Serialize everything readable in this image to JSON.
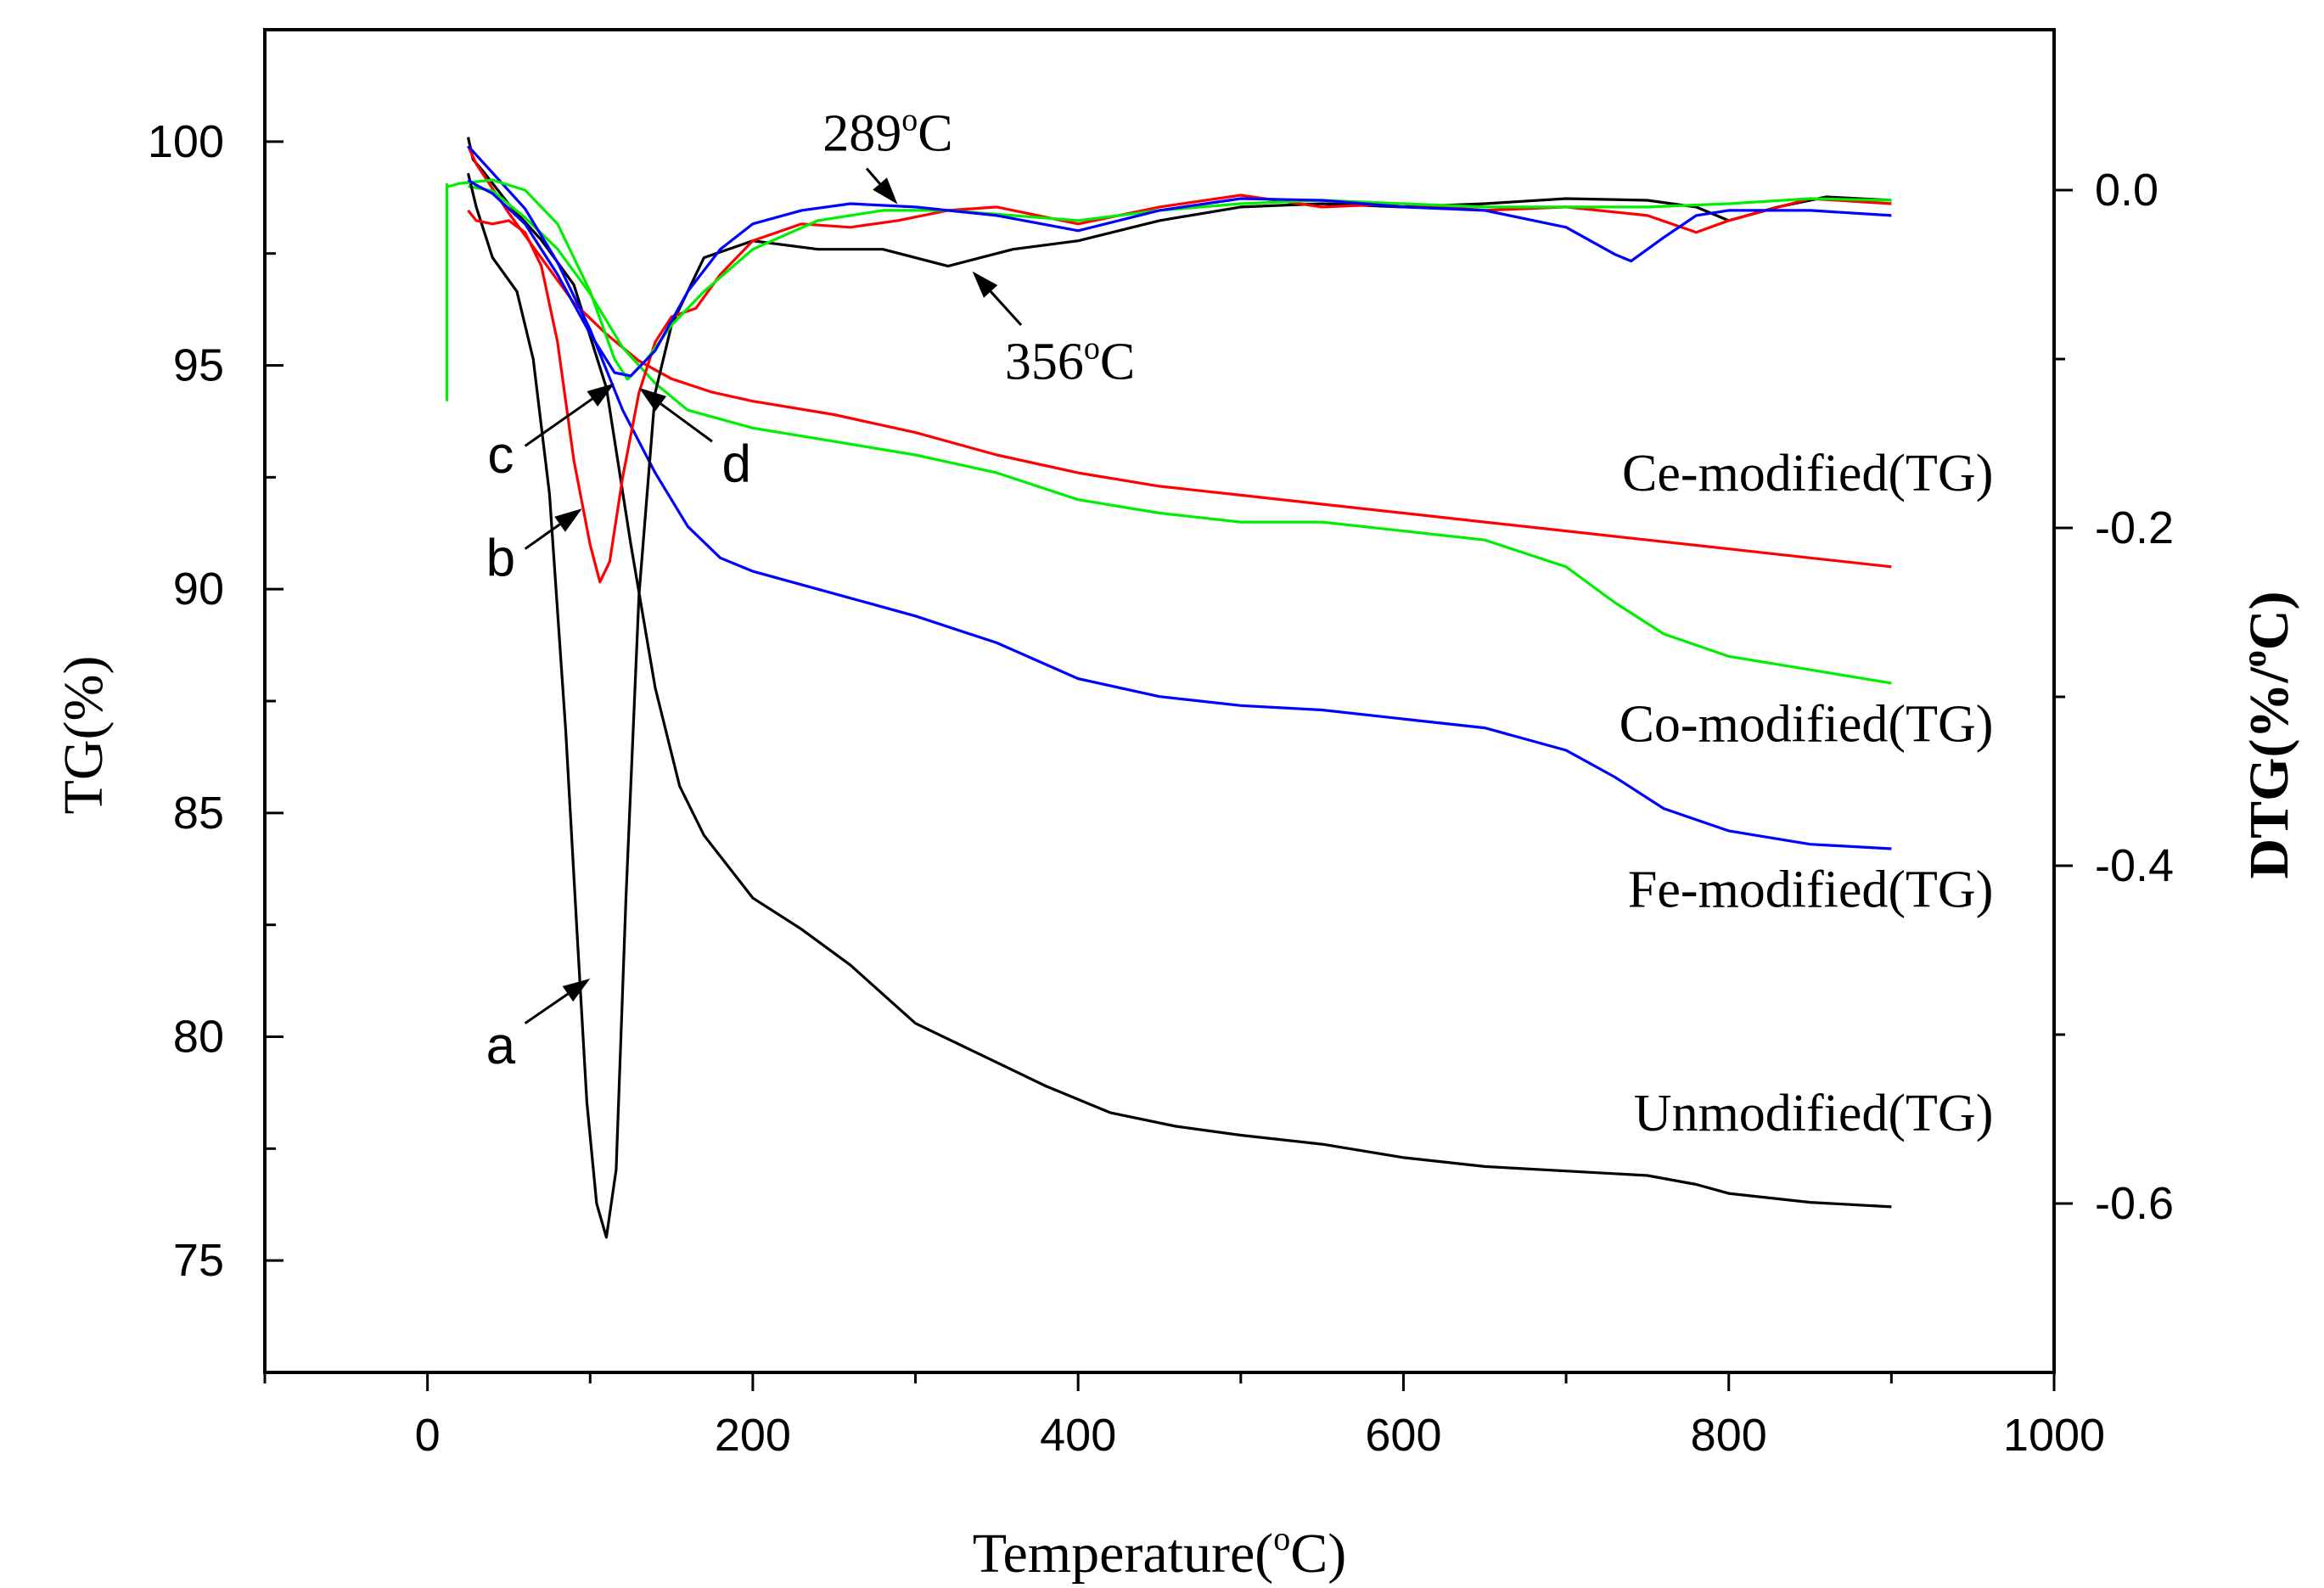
{
  "chart_data": {
    "type": "line",
    "title": "",
    "xlabel": {
      "pre": "Temperature(",
      "sup": "o",
      "post": "C)"
    },
    "ylabel_left": "TG(%)",
    "ylabel_right": {
      "pre": "DTG(%/",
      "sup": "o",
      "post": "C)"
    },
    "xlim": [
      -100,
      1000
    ],
    "ylim_left": [
      72.5,
      102.5
    ],
    "ylim_right": [
      -0.7,
      0.095
    ],
    "x_ticks": [
      0,
      200,
      400,
      600,
      800,
      1000
    ],
    "x_ticks_minor": [
      -100,
      100,
      300,
      500,
      700,
      900
    ],
    "y_left_ticks": [
      75,
      80,
      85,
      90,
      95,
      100
    ],
    "y_left_minor": [
      77.5,
      82.5,
      87.5,
      92.5,
      97.5
    ],
    "y_right_ticks": [
      0.0,
      -0.2,
      -0.4,
      -0.6
    ],
    "y_right_ticks_text": [
      "0.0",
      "-0.2",
      "-0.4",
      "-0.6"
    ],
    "y_right_minor": [
      -0.1,
      -0.3,
      -0.5
    ],
    "colors": {
      "black": "#000000",
      "red": "#ff0000",
      "green": "#00ee00",
      "blue": "#0000ff"
    },
    "series": [
      {
        "name": "Unmodified(TG)",
        "kind": "TG",
        "color": "#000000",
        "axis": "left",
        "points": [
          [
            25,
            100.1
          ],
          [
            28,
            99.6
          ],
          [
            35,
            99.3
          ],
          [
            50,
            98.6
          ],
          [
            70,
            97.8
          ],
          [
            90,
            96.8
          ],
          [
            110,
            94.5
          ],
          [
            125,
            91
          ],
          [
            140,
            87.8
          ],
          [
            155,
            85.6
          ],
          [
            170,
            84.5
          ],
          [
            200,
            83.1
          ],
          [
            230,
            82.4
          ],
          [
            260,
            81.6
          ],
          [
            300,
            80.3
          ],
          [
            340,
            79.6
          ],
          [
            380,
            78.9
          ],
          [
            420,
            78.3
          ],
          [
            460,
            78
          ],
          [
            500,
            77.8
          ],
          [
            550,
            77.6
          ],
          [
            600,
            77.3
          ],
          [
            650,
            77.1
          ],
          [
            700,
            77
          ],
          [
            750,
            76.9
          ],
          [
            780,
            76.7
          ],
          [
            800,
            76.5
          ],
          [
            850,
            76.3
          ],
          [
            900,
            76.2
          ]
        ]
      },
      {
        "name": "Ce-modified(TG)",
        "kind": "TG",
        "color": "#ff0000",
        "axis": "left",
        "points": [
          [
            25,
            99.9
          ],
          [
            30,
            99.5
          ],
          [
            50,
            98.4
          ],
          [
            70,
            97.4
          ],
          [
            90,
            96.4
          ],
          [
            110,
            95.7
          ],
          [
            130,
            95.1
          ],
          [
            150,
            94.7
          ],
          [
            175,
            94.4
          ],
          [
            200,
            94.2
          ],
          [
            250,
            93.9
          ],
          [
            300,
            93.5
          ],
          [
            350,
            93
          ],
          [
            400,
            92.6
          ],
          [
            450,
            92.3
          ],
          [
            500,
            92.1
          ],
          [
            550,
            91.9
          ],
          [
            600,
            91.7
          ],
          [
            650,
            91.5
          ],
          [
            700,
            91.3
          ],
          [
            750,
            91.1
          ],
          [
            800,
            90.9
          ],
          [
            850,
            90.7
          ],
          [
            900,
            90.5
          ]
        ]
      },
      {
        "name": "Co-modified(TG)",
        "kind": "TG",
        "color": "#00ee00",
        "axis": "left",
        "points": [
          [
            25,
            99
          ],
          [
            40,
            98.9
          ],
          [
            60,
            98.3
          ],
          [
            80,
            97.6
          ],
          [
            100,
            96.6
          ],
          [
            120,
            95.4
          ],
          [
            140,
            94.6
          ],
          [
            160,
            94
          ],
          [
            200,
            93.6
          ],
          [
            250,
            93.3
          ],
          [
            300,
            93
          ],
          [
            350,
            92.6
          ],
          [
            400,
            92
          ],
          [
            450,
            91.7
          ],
          [
            500,
            91.5
          ],
          [
            550,
            91.5
          ],
          [
            600,
            91.3
          ],
          [
            650,
            91.1
          ],
          [
            700,
            90.5
          ],
          [
            730,
            89.7
          ],
          [
            760,
            89
          ],
          [
            800,
            88.5
          ],
          [
            850,
            88.2
          ],
          [
            900,
            87.9
          ]
        ]
      },
      {
        "name": "Fe-modified(TG)",
        "kind": "TG",
        "color": "#0000ff",
        "axis": "left",
        "points": [
          [
            25,
            99.9
          ],
          [
            40,
            99.3
          ],
          [
            60,
            98.5
          ],
          [
            80,
            97.3
          ],
          [
            100,
            95.8
          ],
          [
            120,
            94
          ],
          [
            140,
            92.6
          ],
          [
            160,
            91.4
          ],
          [
            180,
            90.7
          ],
          [
            200,
            90.4
          ],
          [
            250,
            89.9
          ],
          [
            300,
            89.4
          ],
          [
            350,
            88.8
          ],
          [
            400,
            88
          ],
          [
            450,
            87.6
          ],
          [
            500,
            87.4
          ],
          [
            550,
            87.3
          ],
          [
            600,
            87.1
          ],
          [
            650,
            86.9
          ],
          [
            700,
            86.4
          ],
          [
            730,
            85.8
          ],
          [
            760,
            85.1
          ],
          [
            800,
            84.6
          ],
          [
            850,
            84.3
          ],
          [
            900,
            84.2
          ]
        ]
      },
      {
        "name": "a",
        "kind": "DTG",
        "color": "#000000",
        "axis": "right",
        "points": [
          [
            25,
            0.01
          ],
          [
            30,
            -0.01
          ],
          [
            40,
            -0.04
          ],
          [
            55,
            -0.06
          ],
          [
            65,
            -0.1
          ],
          [
            75,
            -0.18
          ],
          [
            85,
            -0.32
          ],
          [
            92,
            -0.44
          ],
          [
            98,
            -0.54
          ],
          [
            104,
            -0.6
          ],
          [
            110,
            -0.62
          ],
          [
            116,
            -0.58
          ],
          [
            122,
            -0.42
          ],
          [
            130,
            -0.24
          ],
          [
            140,
            -0.12
          ],
          [
            150,
            -0.08
          ],
          [
            170,
            -0.04
          ],
          [
            200,
            -0.03
          ],
          [
            240,
            -0.035
          ],
          [
            280,
            -0.035
          ],
          [
            320,
            -0.045
          ],
          [
            340,
            -0.04
          ],
          [
            360,
            -0.035
          ],
          [
            400,
            -0.03
          ],
          [
            450,
            -0.018
          ],
          [
            500,
            -0.01
          ],
          [
            550,
            -0.008
          ],
          [
            600,
            -0.01
          ],
          [
            650,
            -0.008
          ],
          [
            700,
            -0.005
          ],
          [
            750,
            -0.006
          ],
          [
            780,
            -0.01
          ],
          [
            800,
            -0.018
          ],
          [
            830,
            -0.01
          ],
          [
            860,
            -0.004
          ],
          [
            900,
            -0.006
          ]
        ]
      },
      {
        "name": "b",
        "kind": "DTG",
        "color": "#ff0000",
        "axis": "right",
        "points": [
          [
            25,
            -0.012
          ],
          [
            30,
            -0.018
          ],
          [
            40,
            -0.02
          ],
          [
            50,
            -0.018
          ],
          [
            60,
            -0.025
          ],
          [
            70,
            -0.045
          ],
          [
            80,
            -0.09
          ],
          [
            90,
            -0.16
          ],
          [
            100,
            -0.21
          ],
          [
            106,
            -0.232
          ],
          [
            112,
            -0.22
          ],
          [
            120,
            -0.17
          ],
          [
            130,
            -0.12
          ],
          [
            140,
            -0.09
          ],
          [
            150,
            -0.075
          ],
          [
            165,
            -0.07
          ],
          [
            180,
            -0.05
          ],
          [
            200,
            -0.03
          ],
          [
            230,
            -0.02
          ],
          [
            260,
            -0.022
          ],
          [
            289,
            -0.018
          ],
          [
            320,
            -0.012
          ],
          [
            350,
            -0.01
          ],
          [
            400,
            -0.02
          ],
          [
            450,
            -0.01
          ],
          [
            500,
            -0.003
          ],
          [
            550,
            -0.01
          ],
          [
            600,
            -0.008
          ],
          [
            650,
            -0.012
          ],
          [
            700,
            -0.01
          ],
          [
            750,
            -0.015
          ],
          [
            780,
            -0.025
          ],
          [
            800,
            -0.018
          ],
          [
            850,
            -0.005
          ],
          [
            900,
            -0.008
          ]
        ]
      },
      {
        "name": "c",
        "kind": "DTG",
        "color": "#00ee00",
        "axis": "right",
        "points": [
          [
            12,
            0.002
          ],
          [
            20,
            0.004
          ],
          [
            40,
            0.006
          ],
          [
            60,
            0.0
          ],
          [
            80,
            -0.02
          ],
          [
            100,
            -0.06
          ],
          [
            115,
            -0.1
          ],
          [
            123,
            -0.112
          ],
          [
            135,
            -0.1
          ],
          [
            150,
            -0.08
          ],
          [
            170,
            -0.06
          ],
          [
            200,
            -0.035
          ],
          [
            240,
            -0.018
          ],
          [
            280,
            -0.012
          ],
          [
            320,
            -0.012
          ],
          [
            360,
            -0.015
          ],
          [
            400,
            -0.018
          ],
          [
            450,
            -0.012
          ],
          [
            500,
            -0.008
          ],
          [
            550,
            -0.006
          ],
          [
            600,
            -0.008
          ],
          [
            650,
            -0.01
          ],
          [
            700,
            -0.01
          ],
          [
            750,
            -0.01
          ],
          [
            800,
            -0.008
          ],
          [
            850,
            -0.005
          ],
          [
            900,
            -0.006
          ]
        ]
      },
      {
        "name": "d",
        "kind": "DTG",
        "color": "#0000ff",
        "axis": "right",
        "points": [
          [
            25,
            0.006
          ],
          [
            30,
            0.003
          ],
          [
            40,
            -0.002
          ],
          [
            60,
            -0.02
          ],
          [
            80,
            -0.05
          ],
          [
            100,
            -0.085
          ],
          [
            115,
            -0.108
          ],
          [
            125,
            -0.11
          ],
          [
            140,
            -0.095
          ],
          [
            160,
            -0.06
          ],
          [
            180,
            -0.035
          ],
          [
            200,
            -0.02
          ],
          [
            230,
            -0.012
          ],
          [
            260,
            -0.008
          ],
          [
            300,
            -0.01
          ],
          [
            350,
            -0.015
          ],
          [
            400,
            -0.024
          ],
          [
            450,
            -0.012
          ],
          [
            500,
            -0.005
          ],
          [
            550,
            -0.006
          ],
          [
            600,
            -0.01
          ],
          [
            650,
            -0.012
          ],
          [
            700,
            -0.022
          ],
          [
            730,
            -0.038
          ],
          [
            740,
            -0.042
          ],
          [
            760,
            -0.028
          ],
          [
            780,
            -0.015
          ],
          [
            800,
            -0.012
          ],
          [
            850,
            -0.012
          ],
          [
            900,
            -0.015
          ]
        ]
      }
    ],
    "series_labels": [
      {
        "name": "Ce-modified",
        "text": "Ce-modified(TG)",
        "x": 900,
        "y": 92.2
      },
      {
        "name": "Co-modified",
        "text": "Co-modified(TG)",
        "x": 900,
        "y": 86.6
      },
      {
        "name": "Fe-modified",
        "text": "Fe-modified(TG)",
        "x": 900,
        "y": 82.9
      },
      {
        "name": "Unmodified",
        "text": "Unmodified(TG)",
        "x": 900,
        "y": 77.9
      }
    ],
    "curve_letters": [
      {
        "name": "a",
        "text": "a",
        "x": 45,
        "y": 79.4,
        "arrow_from": [
          60,
          80.3
        ],
        "arrow_to": [
          100,
          81.3
        ]
      },
      {
        "name": "b",
        "text": "b",
        "x": 45,
        "y": 90.3,
        "arrow_from": [
          60,
          90.9
        ],
        "arrow_to": [
          95,
          91.8
        ]
      },
      {
        "name": "c",
        "text": "c",
        "x": 45,
        "y": 92.6,
        "arrow_from": [
          60,
          93.2
        ],
        "arrow_to": [
          115,
          94.6
        ]
      },
      {
        "name": "d",
        "text": "d",
        "x": 190,
        "y": 92.4,
        "arrow_from": [
          175,
          93.3
        ],
        "arrow_to": [
          130,
          94.5
        ]
      }
    ],
    "annotations": [
      {
        "name": "289",
        "value": "289",
        "unit": "C",
        "x": 283,
        "y": 99.8,
        "arrow_from": [
          270,
          99.4
        ],
        "arrow_to": [
          289,
          98.6
        ]
      },
      {
        "name": "356",
        "value": "356",
        "unit": "C",
        "x": 395,
        "y": 94.7,
        "arrow_from": [
          365,
          95.9
        ],
        "arrow_to": [
          335,
          97.1
        ]
      }
    ]
  }
}
